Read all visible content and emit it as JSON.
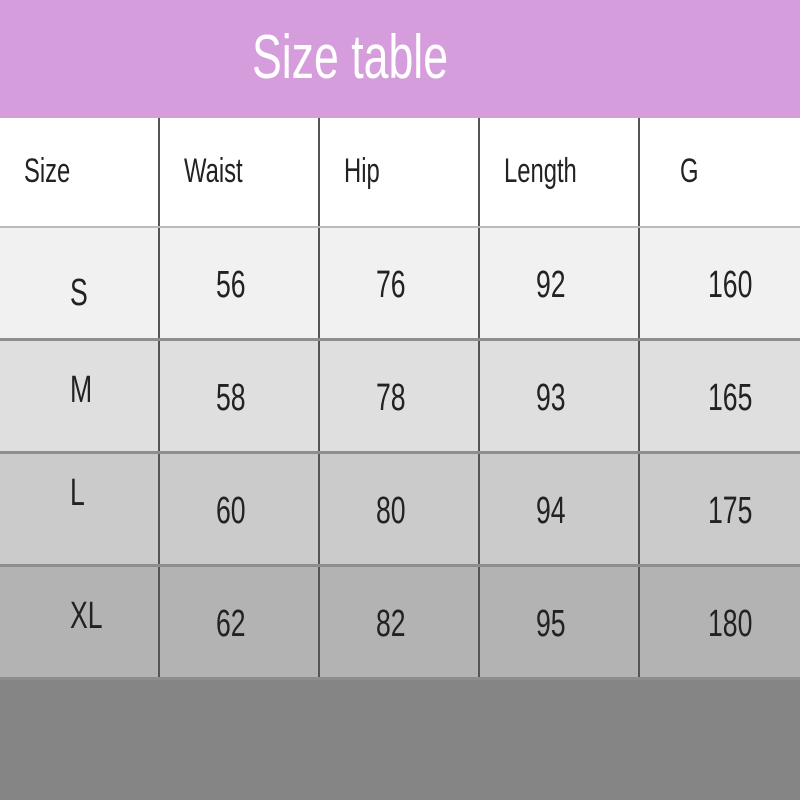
{
  "title": "Size table",
  "headers": [
    "Size",
    "Waist",
    "Hip",
    "Length",
    "G"
  ],
  "rows": [
    [
      "S",
      "56",
      "76",
      "92",
      "160"
    ],
    [
      "M",
      "58",
      "78",
      "93",
      "165"
    ],
    [
      "L",
      "60",
      "80",
      "94",
      "175"
    ],
    [
      "XL",
      "62",
      "82",
      "95",
      "180"
    ]
  ],
  "colors": {
    "banner": "#d69ddd",
    "row_backgrounds": [
      "#f1f1f1",
      "#dfdfdf",
      "#cbcbcb",
      "#b3b3b3"
    ],
    "footer": "#858585"
  }
}
